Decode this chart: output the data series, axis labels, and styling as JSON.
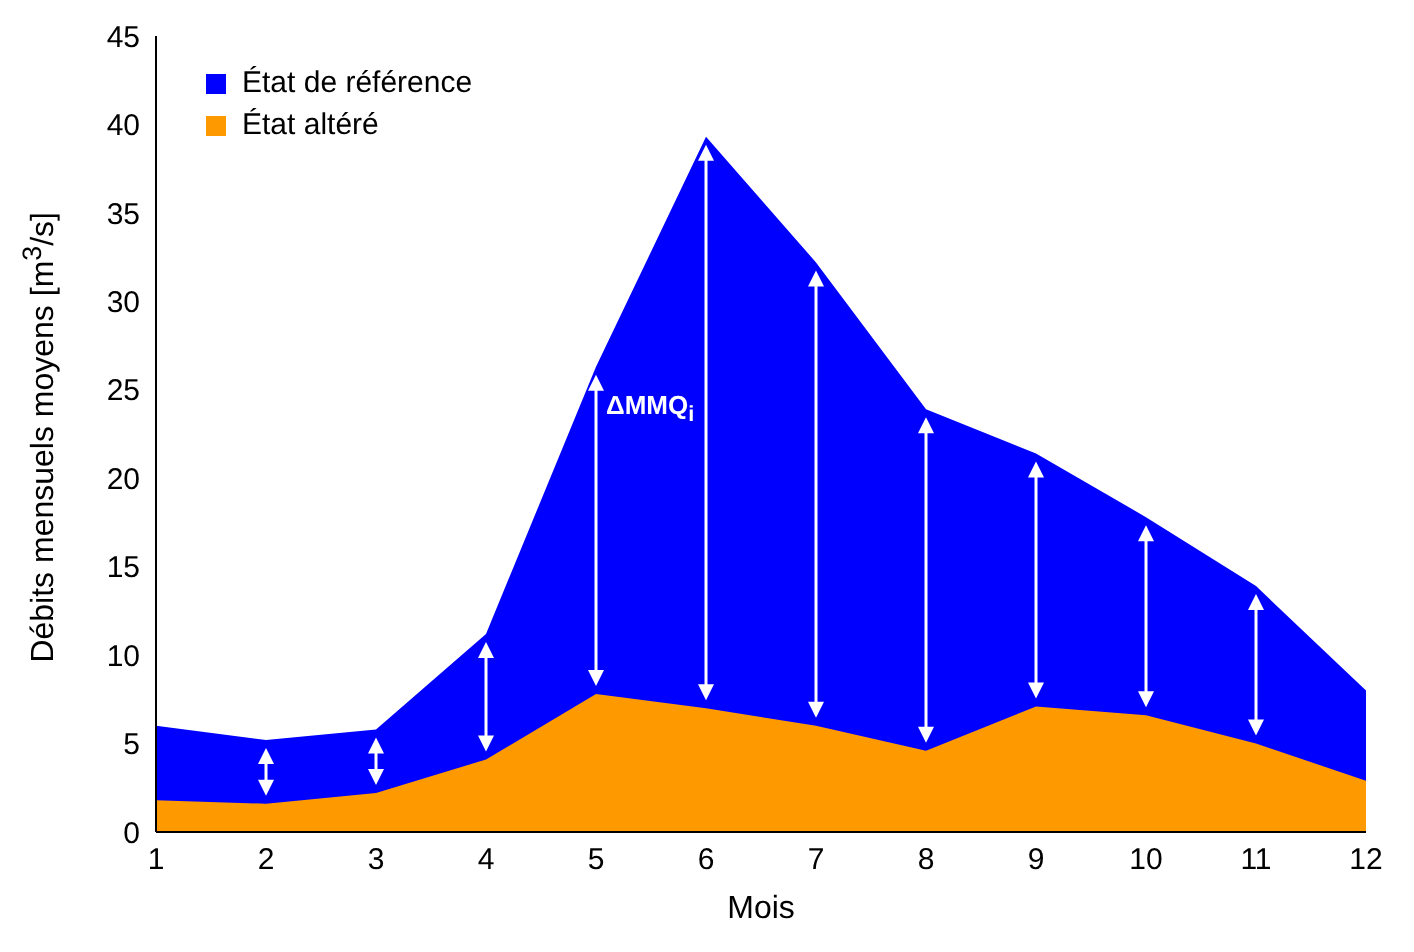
{
  "chart_data": {
    "type": "area",
    "xlabel": "Mois",
    "ylabel": "Débits mensuels moyens [m$^{3}$/s]",
    "x": [
      1,
      2,
      3,
      4,
      5,
      6,
      7,
      8,
      9,
      10,
      11,
      12
    ],
    "series": [
      {
        "name": "État de référence",
        "color": "#0000ff",
        "values": [
          6.0,
          5.2,
          5.8,
          11.2,
          26.3,
          39.3,
          32.2,
          23.9,
          21.4,
          17.8,
          13.9,
          8.0
        ]
      },
      {
        "name": "État altéré",
        "color": "#ff9900",
        "values": [
          1.8,
          1.6,
          2.2,
          4.1,
          7.8,
          7.0,
          6.0,
          4.6,
          7.1,
          6.6,
          5.0,
          2.9
        ]
      }
    ],
    "xlim": [
      1,
      12
    ],
    "xticks": [
      1,
      2,
      3,
      4,
      5,
      6,
      7,
      8,
      9,
      10,
      11,
      12
    ],
    "ylim": [
      0,
      45
    ],
    "yticks": [
      0,
      5,
      10,
      15,
      20,
      25,
      30,
      35,
      40,
      45
    ],
    "grid": false,
    "legend": "top left",
    "annotations": [
      "ΔMMQ$_{i}$"
    ]
  }
}
